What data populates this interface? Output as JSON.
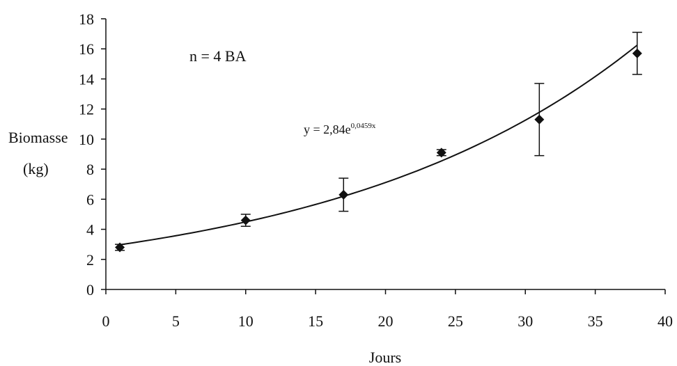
{
  "chart_data": {
    "type": "scatter",
    "xlabel": "Jours",
    "ylabel_lines": [
      "Biomasse",
      "(kg)"
    ],
    "xlim": [
      0,
      40
    ],
    "ylim": [
      0,
      18
    ],
    "xticks": [
      0,
      5,
      10,
      15,
      20,
      25,
      30,
      35,
      40
    ],
    "yticks": [
      0,
      2,
      4,
      6,
      8,
      10,
      12,
      14,
      16,
      18
    ],
    "grid": false,
    "marker": "diamond",
    "color": "#111111",
    "points": [
      {
        "x": 1,
        "y": 2.8,
        "err": 0.2
      },
      {
        "x": 10,
        "y": 4.6,
        "err": 0.4
      },
      {
        "x": 17,
        "y": 6.3,
        "err": 1.1
      },
      {
        "x": 24,
        "y": 9.1,
        "err": 0.2
      },
      {
        "x": 31,
        "y": 11.3,
        "err": 2.4
      },
      {
        "x": 38,
        "y": 15.7,
        "err": 1.4
      }
    ],
    "trendline": {
      "type": "exponential",
      "a": 2.84,
      "b": 0.0459,
      "x_range": [
        1,
        38
      ]
    },
    "annotations": {
      "sample": "n = 4 BA",
      "equation_base": "y = 2,84e",
      "equation_exponent": "0,0459x"
    }
  }
}
